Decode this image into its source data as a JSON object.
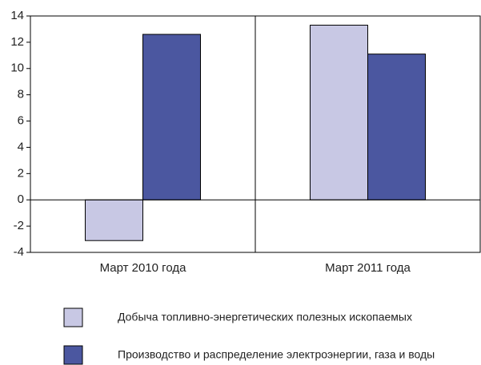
{
  "chart_data": {
    "type": "bar",
    "categories": [
      "Март 2010 года",
      "Март 2011 года"
    ],
    "series": [
      {
        "name": "Добыча топливно-энергетических полезных ископаемых",
        "color": "#c8c8e4",
        "values": [
          -3.1,
          13.3
        ]
      },
      {
        "name": "Производство и распределение электроэнергии, газа и воды",
        "color": "#4b57a0",
        "values": [
          12.6,
          11.1
        ]
      }
    ],
    "ylim": [
      -4,
      14
    ],
    "yticks": [
      -4,
      -2,
      0,
      2,
      4,
      6,
      8,
      10,
      12,
      14
    ],
    "grid": false
  }
}
